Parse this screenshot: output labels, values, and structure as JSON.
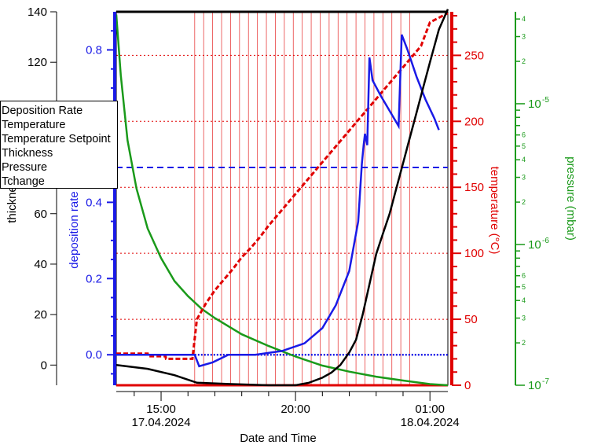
{
  "chart_data": {
    "type": "line",
    "xlabel": "Date and Time",
    "x_ticks": [
      {
        "time": "2024-04-17 15:00",
        "label": "15:00",
        "sublabel": "17.04.2024"
      },
      {
        "time": "2024-04-17 20:00",
        "label": "20:00",
        "sublabel": ""
      },
      {
        "time": "2024-04-18 01:00",
        "label": "01:00",
        "sublabel": "18.04.2024"
      }
    ],
    "xlim": [
      "2024-04-17 13:20",
      "2024-04-18 01:40"
    ],
    "axes": {
      "thickness": {
        "label": "thickness",
        "color": "#000000",
        "range": [
          -8,
          140
        ],
        "ticks": [
          0,
          20,
          40,
          60,
          80,
          100,
          120,
          140
        ]
      },
      "deposition_rate": {
        "label": "deposition rate",
        "color": "#1a1ae6",
        "range": [
          -0.08,
          0.9
        ],
        "ticks": [
          "0.0",
          "0.2",
          "0.4",
          "0.6",
          "0.8"
        ]
      },
      "temperature": {
        "label": "temperature (°C)",
        "color": "#e00000",
        "range": [
          0,
          283
        ],
        "ticks": [
          0,
          50,
          100,
          150,
          200,
          250
        ]
      },
      "pressure": {
        "label": "pressure (mbar)",
        "color": "#1a9a1a",
        "scale": "log",
        "range": [
          1e-07,
          4.5e-05
        ],
        "major_ticks": [
          {
            "v": 1e-07,
            "l": "10-7"
          },
          {
            "v": 1e-06,
            "l": "10-6"
          },
          {
            "v": 1e-05,
            "l": "10-5"
          }
        ]
      }
    },
    "legend": {
      "position": "top-left",
      "entries": [
        "Deposition Rate",
        "Temperature",
        "Temperature Setpoint",
        "Thickness",
        "Pressure",
        "Tchange"
      ]
    },
    "series": [
      {
        "name": "Deposition Rate",
        "axis": "deposition_rate",
        "color": "#1a1ae6",
        "points": [
          [
            "2024-04-17 13:20",
            0.0
          ],
          [
            "2024-04-17 16:15",
            0.0
          ],
          [
            "2024-04-17 16:25",
            -0.03
          ],
          [
            "2024-04-17 16:55",
            -0.02
          ],
          [
            "2024-04-17 17:30",
            0.0
          ],
          [
            "2024-04-17 18:30",
            0.0
          ],
          [
            "2024-04-17 19:30",
            0.01
          ],
          [
            "2024-04-17 20:20",
            0.03
          ],
          [
            "2024-04-17 21:00",
            0.07
          ],
          [
            "2024-04-17 21:30",
            0.13
          ],
          [
            "2024-04-17 22:00",
            0.22
          ],
          [
            "2024-04-17 22:20",
            0.35
          ],
          [
            "2024-04-17 22:28",
            0.5
          ],
          [
            "2024-04-17 22:32",
            0.55
          ],
          [
            "2024-04-17 22:35",
            0.58
          ],
          [
            "2024-04-17 22:40",
            0.55
          ],
          [
            "2024-04-17 22:45",
            0.78
          ],
          [
            "2024-04-17 22:52",
            0.72
          ],
          [
            "2024-04-17 23:10",
            0.68
          ],
          [
            "2024-04-17 23:30",
            0.64
          ],
          [
            "2024-04-17 23:50",
            0.6
          ],
          [
            "2024-04-17 23:57",
            0.84
          ],
          [
            "2024-04-18 00:10",
            0.8
          ],
          [
            "2024-04-18 00:30",
            0.73
          ],
          [
            "2024-04-18 00:50",
            0.67
          ],
          [
            "2024-04-18 01:10",
            0.62
          ],
          [
            "2024-04-18 01:20",
            0.59
          ]
        ]
      },
      {
        "name": "Temperature",
        "axis": "temperature",
        "color": "#e00000",
        "points": [
          [
            "2024-04-17 13:20",
            24
          ],
          [
            "2024-04-17 14:30",
            24
          ],
          [
            "2024-04-17 14:31",
            22
          ],
          [
            "2024-04-17 15:10",
            22
          ],
          [
            "2024-04-17 15:11",
            20
          ],
          [
            "2024-04-17 16:10",
            20
          ],
          [
            "2024-04-17 16:20",
            50
          ],
          [
            "2024-04-17 16:40",
            62
          ],
          [
            "2024-04-17 17:00",
            72
          ],
          [
            "2024-04-17 17:20",
            80
          ],
          [
            "2024-04-17 17:40",
            88
          ],
          [
            "2024-04-17 18:00",
            97
          ],
          [
            "2024-04-17 18:20",
            104
          ],
          [
            "2024-04-17 18:40",
            112
          ],
          [
            "2024-04-17 19:00",
            121
          ],
          [
            "2024-04-17 19:20",
            129
          ],
          [
            "2024-04-17 19:40",
            137
          ],
          [
            "2024-04-17 20:00",
            145
          ],
          [
            "2024-04-17 20:20",
            153
          ],
          [
            "2024-04-17 20:40",
            161
          ],
          [
            "2024-04-17 21:00",
            169
          ],
          [
            "2024-04-17 21:20",
            177
          ],
          [
            "2024-04-17 21:40",
            185
          ],
          [
            "2024-04-17 22:00",
            193
          ],
          [
            "2024-04-17 22:20",
            201
          ],
          [
            "2024-04-17 22:40",
            209
          ],
          [
            "2024-04-17 23:00",
            217
          ],
          [
            "2024-04-17 23:20",
            225
          ],
          [
            "2024-04-17 23:40",
            233
          ],
          [
            "2024-04-18 00:00",
            241
          ],
          [
            "2024-04-18 00:20",
            249
          ],
          [
            "2024-04-18 00:40",
            257
          ],
          [
            "2024-04-18 01:00",
            275
          ],
          [
            "2024-04-18 01:40",
            282
          ]
        ]
      },
      {
        "name": "Temperature Setpoint",
        "axis": "temperature",
        "color": "#1a1ae6",
        "style": "dashed",
        "points": [
          [
            "2024-04-17 13:20",
            165
          ],
          [
            "2024-04-18 01:40",
            165
          ]
        ]
      },
      {
        "name": "Thickness",
        "axis": "thickness",
        "color": "#000000",
        "points": [
          [
            "2024-04-17 13:20",
            0
          ],
          [
            "2024-04-17 14:30",
            -1.5
          ],
          [
            "2024-04-17 15:30",
            -4
          ],
          [
            "2024-04-17 16:20",
            -7
          ],
          [
            "2024-04-17 17:30",
            -7.5
          ],
          [
            "2024-04-17 19:00",
            -8
          ],
          [
            "2024-04-17 20:00",
            -8
          ],
          [
            "2024-04-17 20:30",
            -7
          ],
          [
            "2024-04-17 21:00",
            -5
          ],
          [
            "2024-04-17 21:20",
            -3
          ],
          [
            "2024-04-17 21:40",
            0
          ],
          [
            "2024-04-17 22:00",
            5
          ],
          [
            "2024-04-17 22:15",
            10
          ],
          [
            "2024-04-17 22:30",
            20
          ],
          [
            "2024-04-17 22:45",
            32
          ],
          [
            "2024-04-17 23:00",
            44
          ],
          [
            "2024-04-17 23:15",
            52
          ],
          [
            "2024-04-17 23:30",
            60
          ],
          [
            "2024-04-17 23:45",
            70
          ],
          [
            "2024-04-18 00:00",
            80
          ],
          [
            "2024-04-18 00:15",
            90
          ],
          [
            "2024-04-18 00:30",
            100
          ],
          [
            "2024-04-18 00:45",
            110
          ],
          [
            "2024-04-18 01:00",
            120
          ],
          [
            "2024-04-18 01:20",
            133
          ],
          [
            "2024-04-18 01:40",
            141
          ]
        ]
      },
      {
        "name": "Pressure",
        "axis": "pressure",
        "color": "#1a9a1a",
        "points": [
          [
            "2024-04-17 13:20",
            4.3e-05
          ],
          [
            "2024-04-17 13:30",
            1.6e-05
          ],
          [
            "2024-04-17 13:45",
            5.5e-06
          ],
          [
            "2024-04-17 14:05",
            2.5e-06
          ],
          [
            "2024-04-17 14:30",
            1.3e-06
          ],
          [
            "2024-04-17 15:00",
            8e-07
          ],
          [
            "2024-04-17 15:30",
            5.5e-07
          ],
          [
            "2024-04-17 16:00",
            4.3e-07
          ],
          [
            "2024-04-17 16:30",
            3.5e-07
          ],
          [
            "2024-04-17 17:00",
            3e-07
          ],
          [
            "2024-04-17 18:00",
            2.3e-07
          ],
          [
            "2024-04-17 19:00",
            1.9e-07
          ],
          [
            "2024-04-17 20:00",
            1.6e-07
          ],
          [
            "2024-04-17 21:00",
            1.38e-07
          ],
          [
            "2024-04-17 22:00",
            1.25e-07
          ],
          [
            "2024-04-17 23:00",
            1.15e-07
          ],
          [
            "2024-04-18 00:00",
            1.08e-07
          ],
          [
            "2024-04-18 01:00",
            1.02e-07
          ],
          [
            "2024-04-18 01:40",
            1e-07
          ]
        ]
      },
      {
        "name": "Tchange",
        "axis": "temperature",
        "color": "#e00000",
        "style": "vertical-lines",
        "times": [
          "2024-04-17 16:15",
          "2024-04-17 16:35",
          "2024-04-17 16:55",
          "2024-04-17 17:15",
          "2024-04-17 17:35",
          "2024-04-17 17:55",
          "2024-04-17 18:15",
          "2024-04-17 18:35",
          "2024-04-17 18:55",
          "2024-04-17 19:15",
          "2024-04-17 19:35",
          "2024-04-17 19:55",
          "2024-04-17 20:15",
          "2024-04-17 20:35",
          "2024-04-17 20:55",
          "2024-04-17 21:15",
          "2024-04-17 21:35",
          "2024-04-17 21:55",
          "2024-04-17 22:15",
          "2024-04-17 22:35",
          "2024-04-17 22:55",
          "2024-04-17 23:15",
          "2024-04-17 23:35",
          "2024-04-17 23:55",
          "2024-04-18 00:15"
        ]
      }
    ],
    "grid": true
  }
}
